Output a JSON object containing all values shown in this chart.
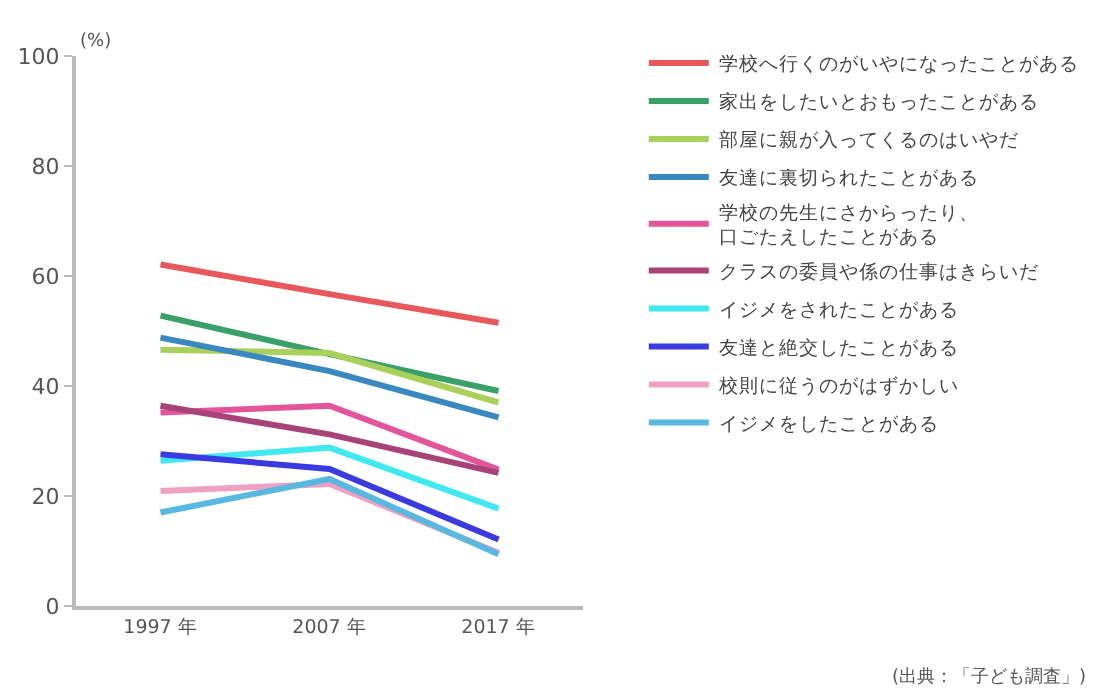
{
  "chart_data": {
    "type": "line",
    "ylabel": "(%)",
    "categories": [
      "1997 年",
      "2007 年",
      "2017 年"
    ],
    "ylim": [
      0,
      100
    ],
    "yticks": [
      0,
      20,
      40,
      60,
      80,
      100
    ],
    "legend": "right",
    "marker": "none",
    "line_style": "solid",
    "series": [
      {
        "name": "学校へ行くのがいやになったことがある",
        "color": "#e8585a",
        "values": [
          62.1,
          56.7,
          51.5
        ]
      },
      {
        "name": "家出をしたいとおもったことがある",
        "color": "#3aa06a",
        "values": [
          52.8,
          45.8,
          39.1
        ]
      },
      {
        "name": "部屋に親が入ってくるのはいやだ",
        "color": "#a8d05a",
        "values": [
          46.6,
          46.0,
          37.0
        ]
      },
      {
        "name": "友達に裏切られたことがある",
        "color": "#3a88c0",
        "values": [
          48.8,
          42.7,
          34.3
        ]
      },
      {
        "name": "学校の先生にさからったり、口ごたえしたことがある",
        "color": "#e2559a",
        "values": [
          35.2,
          36.4,
          24.8
        ]
      },
      {
        "name": "クラスの委員や係の仕事はきらいだ",
        "color": "#a8437a",
        "values": [
          36.4,
          31.2,
          24.2
        ]
      },
      {
        "name": "イジメをされたことがある",
        "color": "#40e8f0",
        "values": [
          26.4,
          28.8,
          17.7
        ]
      },
      {
        "name": "友達と絶交したことがある",
        "color": "#3a3ae0",
        "values": [
          27.6,
          24.9,
          12.1
        ]
      },
      {
        "name": "校則に従うのがはずかしい",
        "color": "#f0a0c0",
        "values": [
          20.9,
          22.2,
          9.7
        ]
      },
      {
        "name": "イジメをしたことがある",
        "color": "#58b8e0",
        "values": [
          17.0,
          23.1,
          9.4
        ]
      }
    ],
    "annotations": [
      "(出典：「子ども調査」)"
    ]
  }
}
